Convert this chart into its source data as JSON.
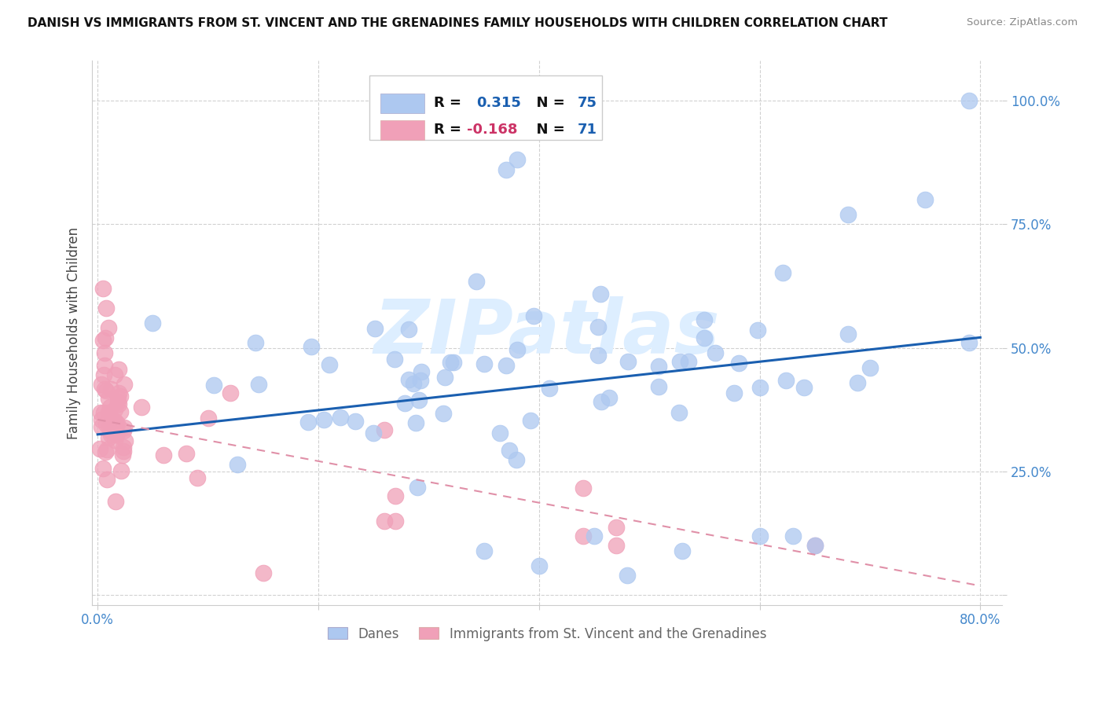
{
  "title": "DANISH VS IMMIGRANTS FROM ST. VINCENT AND THE GRENADINES FAMILY HOUSEHOLDS WITH CHILDREN CORRELATION CHART",
  "source": "Source: ZipAtlas.com",
  "ylabel": "Family Households with Children",
  "r_danes": 0.315,
  "n_danes": 75,
  "r_immigrants": -0.168,
  "n_immigrants": 71,
  "xlim": [
    -0.005,
    0.82
  ],
  "ylim": [
    -0.02,
    1.08
  ],
  "color_danes": "#adc8f0",
  "color_immigrants": "#f0a0b8",
  "trendline_danes_color": "#1a5fb0",
  "trendline_immigrants_color": "#e090a8",
  "watermark": "ZIPatlas",
  "watermark_color": "#ddeeff",
  "background_color": "#ffffff",
  "danes_intercept": 0.325,
  "danes_slope": 0.245,
  "imm_intercept": 0.355,
  "imm_slope": -0.42,
  "legend_r1_color": "#1a5fb0",
  "legend_r2_color": "#cc3366",
  "bottom_legend_color": "#666666"
}
